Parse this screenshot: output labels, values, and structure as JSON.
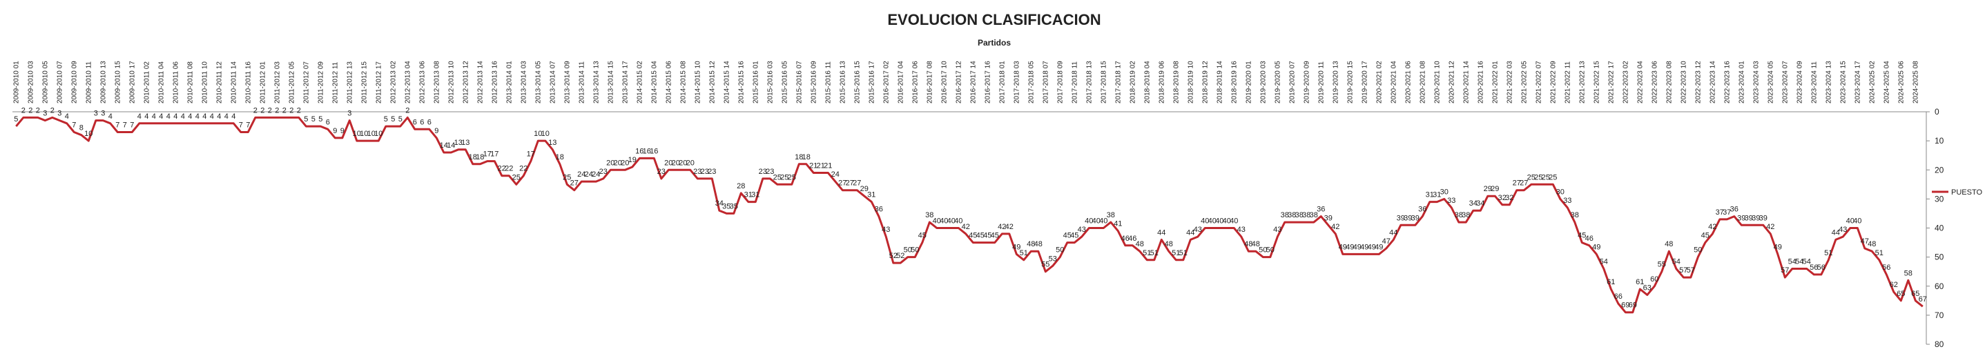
{
  "chart_data": {
    "type": "line",
    "title": "EVOLUCION CLASIFICACION",
    "x_label": "Partidos",
    "categories": [
      "2009-2010 01",
      null,
      "2009-2010 03",
      null,
      "2009-2010 05",
      null,
      "2009-2010 07",
      null,
      "2009-2010 09",
      null,
      "2009-2010 11",
      null,
      "2009-2010 13",
      null,
      "2009-2010 15",
      null,
      "2009-2010 17",
      null,
      "2010-2011 02",
      null,
      "2010-2011 04",
      null,
      "2010-2011 06",
      null,
      "2010-2011 08",
      null,
      "2010-2011 10",
      null,
      "2010-2011 12",
      null,
      "2010-2011 14",
      null,
      "2010-2011 16",
      null,
      "2011-2012 01",
      null,
      "2011-2012 03",
      null,
      "2011-2012 05",
      null,
      "2011-2012 07",
      null,
      "2011-2012 09",
      null,
      "2011-2012 11",
      null,
      "2011-2012 13",
      null,
      "2011-2012 15",
      null,
      "2011-2012 17",
      null,
      "2012-2013 02",
      null,
      "2012-2013 04",
      null,
      "2012-2013 06",
      null,
      "2012-2013 08",
      null,
      "2012-2013 10",
      null,
      "2012-2013 12",
      null,
      "2012-2013 14",
      null,
      "2012-2013 16",
      null,
      "2013-2014 01",
      null,
      "2013-2014 03",
      null,
      "2013-2014 05",
      null,
      "2013-2014 07",
      null,
      "2013-2014 09",
      null,
      "2013-2014 11",
      null,
      "2013-2014 13",
      null,
      "2013-2014 15",
      null,
      "2013-2014 17",
      null,
      "2014-2015 02",
      null,
      "2014-2015 04",
      null,
      "2014-2015 06",
      null,
      "2014-2015 08",
      null,
      "2014-2015 10",
      null,
      "2014-2015 12",
      null,
      "2014-2015 14",
      null,
      "2014-2015 16",
      null,
      "2015-2016 01",
      null,
      "2015-2016 03",
      null,
      "2015-2016 05",
      null,
      "2015-2016 07",
      null,
      "2015-2016 09",
      null,
      "2015-2016 11",
      null,
      "2015-2016 13",
      null,
      "2015-2016 15",
      null,
      "2015-2016 17",
      null,
      "2016-2017 02",
      null,
      "2016-2017 04",
      null,
      "2016-2017 06",
      null,
      "2016-2017 08",
      null,
      "2016-2017 10",
      null,
      "2016-2017 12",
      null,
      "2016-2017 14",
      null,
      "2016-2017 16",
      null,
      "2017-2018 01",
      null,
      "2017-2018 03",
      null,
      "2017-2018 05",
      null,
      "2017-2018 07",
      null,
      "2017-2018 09",
      null,
      "2017-2018 11",
      null,
      "2017-2018 13",
      null,
      "2017-2018 15",
      null,
      "2017-2018 17",
      null,
      "2018-2019 02",
      null,
      "2018-2019 04",
      null,
      "2018-2019 06",
      null,
      "2018-2019 08",
      null,
      "2018-2019 10",
      null,
      "2018-2019 12",
      null,
      "2018-2019 14",
      null,
      "2018-2019 16",
      null,
      "2019-2020 01",
      null,
      "2019-2020 03",
      null,
      "2019-2020 05",
      null,
      "2019-2020 07",
      null,
      "2019-2020 09",
      null,
      "2019-2020 11",
      null,
      "2019-2020 13",
      null,
      "2019-2020 15",
      null,
      "2019-2020 17",
      null,
      "2020-2021 02",
      null,
      "2020-2021 04",
      null,
      "2020-2021 06",
      null,
      "2020-2021 08",
      null,
      "2020-2021 10",
      null,
      "2020-2021 12",
      null,
      "2020-2021 14",
      null,
      "2020-2021 16",
      null,
      "2021-2022 01",
      null,
      "2021-2022 03",
      null,
      "2021-2022 05",
      null,
      "2021-2022 07",
      null,
      "2021-2022 09",
      null,
      "2021-2022 11",
      null,
      "2021-2022 13",
      null,
      "2021-2022 15",
      null,
      "2021-2022 17",
      null,
      "2022-2023 02",
      null,
      "2022-2023 04",
      null,
      "2022-2023 06",
      null,
      "2022-2023 08",
      null,
      "2022-2023 10",
      null,
      "2022-2023 12",
      null,
      "2022-2023 14",
      null,
      "2022-2023 16",
      null,
      "2023-2024 01",
      null,
      "2023-2024 03",
      null,
      "2023-2024 05",
      null,
      "2023-2024 07",
      null,
      "2023-2024 09",
      null,
      "2023-2024 11",
      null,
      "2023-2024 13",
      null,
      "2023-2024 15",
      null,
      "2023-2024 17",
      null,
      "2024-2025 02",
      null,
      "2024-2025 04",
      null,
      "2024-2025 06",
      null,
      "2024-2025 08",
      null
    ],
    "series": [
      {
        "name": "PUESTO",
        "color": "#c0272d",
        "values": [
          5,
          2,
          2,
          2,
          3,
          2,
          3,
          4,
          7,
          8,
          10,
          3,
          3,
          4,
          7,
          7,
          7,
          4,
          4,
          4,
          4,
          4,
          4,
          4,
          4,
          4,
          4,
          4,
          4,
          4,
          4,
          7,
          7,
          2,
          2,
          2,
          2,
          2,
          2,
          2,
          5,
          5,
          5,
          6,
          9,
          9,
          3,
          10,
          10,
          10,
          10,
          5,
          5,
          5,
          2,
          6,
          6,
          6,
          9,
          14,
          14,
          13,
          13,
          18,
          18,
          17,
          17,
          22,
          22,
          25,
          22,
          17,
          10,
          10,
          13,
          18,
          25,
          27,
          24,
          24,
          24,
          23,
          20,
          20,
          20,
          19,
          16,
          16,
          16,
          23,
          20,
          20,
          20,
          20,
          23,
          23,
          23,
          34,
          35,
          35,
          28,
          31,
          31,
          23,
          23,
          25,
          25,
          25,
          18,
          18,
          21,
          21,
          21,
          24,
          27,
          27,
          27,
          29,
          31,
          36,
          43,
          52,
          52,
          50,
          50,
          45,
          38,
          40,
          40,
          40,
          40,
          42,
          45,
          45,
          45,
          45,
          42,
          42,
          49,
          51,
          48,
          48,
          55,
          53,
          50,
          45,
          45,
          43,
          40,
          40,
          40,
          38,
          41,
          46,
          46,
          48,
          51,
          51,
          44,
          48,
          51,
          51,
          44,
          43,
          40,
          40,
          40,
          40,
          40,
          43,
          48,
          48,
          50,
          50,
          43,
          38,
          38,
          38,
          38,
          38,
          36,
          39,
          42,
          49,
          49,
          49,
          49,
          49,
          49,
          47,
          44,
          39,
          39,
          39,
          36,
          31,
          31,
          30,
          33,
          38,
          38,
          34,
          34,
          29,
          29,
          32,
          32,
          27,
          27,
          25,
          25,
          25,
          25,
          30,
          33,
          38,
          45,
          46,
          49,
          54,
          61,
          66,
          69,
          69,
          61,
          63,
          60,
          55,
          48,
          54,
          57,
          57,
          50,
          45,
          42,
          37,
          37,
          36,
          39,
          39,
          39,
          39,
          42,
          49,
          57,
          54,
          54,
          54,
          56,
          56,
          51,
          44,
          43,
          40,
          40,
          47,
          48,
          51,
          56,
          62,
          65,
          58,
          65,
          67
        ]
      }
    ],
    "ylim": [
      0,
      80
    ],
    "y_reversed": true,
    "yticks": [
      0,
      10,
      20,
      30,
      40,
      50,
      60,
      70,
      80
    ],
    "legend": "right",
    "data_labels": true
  }
}
